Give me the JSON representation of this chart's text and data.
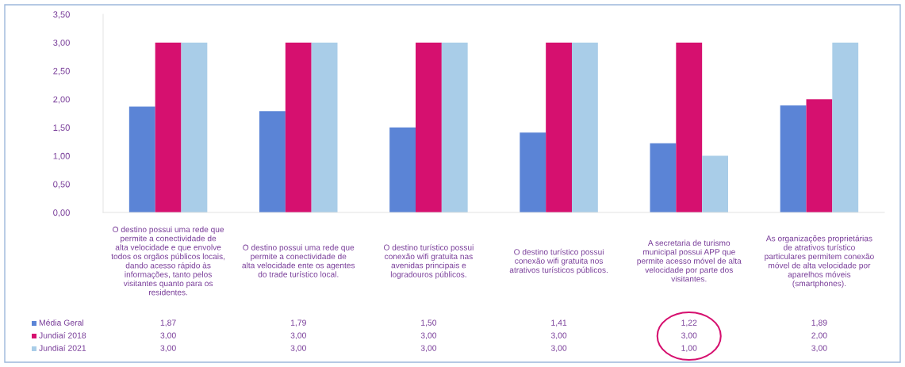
{
  "chart_data": {
    "type": "bar",
    "categories": [
      "O destino possui uma rede que\npermite a conectividade de\nalta velocidade e que envolve\ntodos os orgãos públicos locais,\ndando acesso rápido às\ninformações, tanto pelos\nvisitantes quanto para os\nresidentes.",
      "O destino possui uma rede que\npermite a conectividade de\nalta velocidade ente os agentes\ndo trade turístico local.",
      "O destino turístico possui\nconexão wifi gratuita nas\navenidas principais e\nlogradouros públicos.",
      "O destino turístico possui\nconexão wifi gratuita nos\natrativos turísticos públicos.",
      "A secretaria de turismo\nmunicipal possui APP que\npermite acesso móvel de alta\nvelocidade por parte dos\nvisitantes.",
      "As organizações proprietárias\nde atrativos turístico\nparticulares permitem conexão\nmóvel de alta velocidade por\naparelhos móveis\n(smartphones)."
    ],
    "series": [
      {
        "name": "Média Geral",
        "color": "#5b84d6",
        "values": [
          1.87,
          1.79,
          1.5,
          1.41,
          1.22,
          1.89
        ],
        "value_labels": [
          "1,87",
          "1,79",
          "1,50",
          "1,41",
          "1,22",
          "1,89"
        ]
      },
      {
        "name": "Jundiaí 2018",
        "color": "#d6106f",
        "values": [
          3,
          3,
          3,
          3,
          3,
          2
        ],
        "value_labels": [
          "3,00",
          "3,00",
          "3,00",
          "3,00",
          "3,00",
          "2,00"
        ]
      },
      {
        "name": "Jundiaí 2021",
        "color": "#a9cde8",
        "values": [
          3,
          3,
          3,
          3,
          1,
          3
        ],
        "value_labels": [
          "3,00",
          "3,00",
          "3,00",
          "3,00",
          "1,00",
          "3,00"
        ]
      }
    ],
    "ylim": [
      0,
      3.5
    ],
    "yticks": [
      {
        "value": 0,
        "label": "0,00"
      },
      {
        "value": 0.5,
        "label": "0,50"
      },
      {
        "value": 1,
        "label": "1,00"
      },
      {
        "value": 1.5,
        "label": "1,50"
      },
      {
        "value": 2,
        "label": "2,00"
      },
      {
        "value": 2.5,
        "label": "2,50"
      },
      {
        "value": 3,
        "label": "3,00"
      },
      {
        "value": 3.5,
        "label": "3,50"
      }
    ],
    "grid": false,
    "legend": "bottom left"
  }
}
